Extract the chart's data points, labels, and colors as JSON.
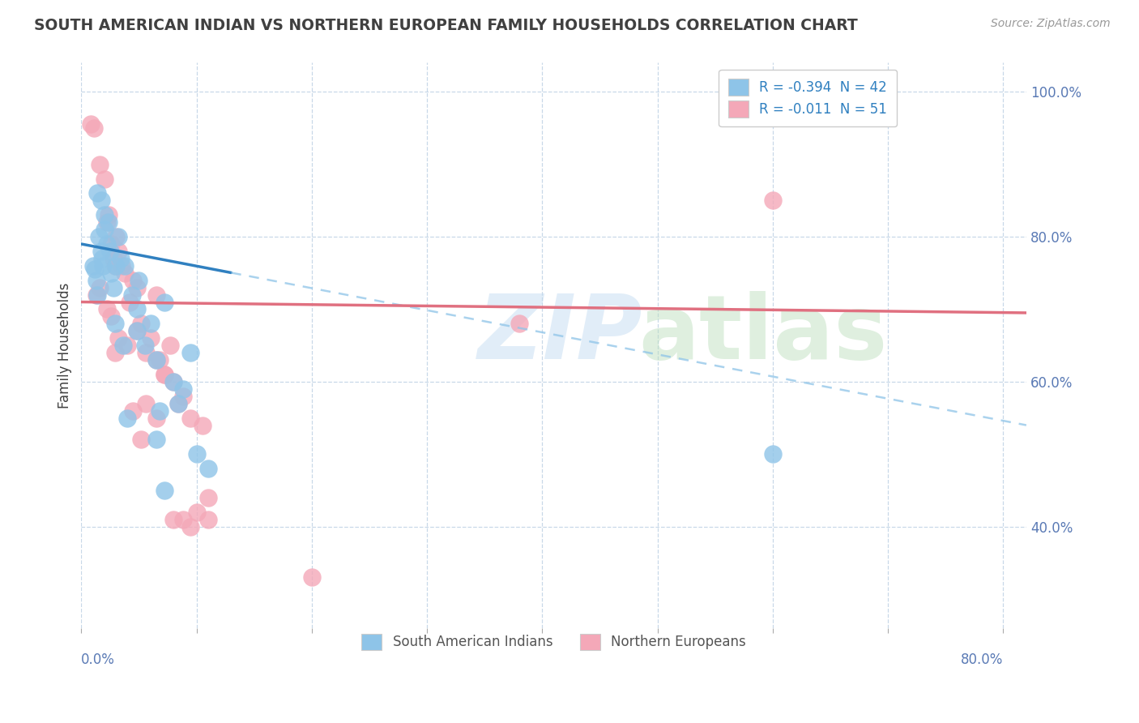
{
  "title": "SOUTH AMERICAN INDIAN VS NORTHERN EUROPEAN FAMILY HOUSEHOLDS CORRELATION CHART",
  "source": "Source: ZipAtlas.com",
  "ylabel": "Family Households",
  "legend_blue_label": "R = -0.394  N = 42",
  "legend_pink_label": "R = -0.011  N = 51",
  "legend_bottom_blue": "South American Indians",
  "legend_bottom_pink": "Northern Europeans",
  "blue_color": "#8ec4e8",
  "pink_color": "#f4a8b8",
  "blue_line_color": "#3080c0",
  "pink_line_color": "#e07080",
  "background_color": "#ffffff",
  "grid_color": "#c8d8e8",
  "title_color": "#404040",
  "axis_label_color": "#5a7ab5",
  "blue_scatter": [
    [
      0.01,
      0.76
    ],
    [
      0.012,
      0.755
    ],
    [
      0.013,
      0.74
    ],
    [
      0.014,
      0.72
    ],
    [
      0.015,
      0.8
    ],
    [
      0.017,
      0.78
    ],
    [
      0.018,
      0.77
    ],
    [
      0.019,
      0.76
    ],
    [
      0.02,
      0.81
    ],
    [
      0.022,
      0.79
    ],
    [
      0.024,
      0.82
    ],
    [
      0.025,
      0.78
    ],
    [
      0.026,
      0.75
    ],
    [
      0.028,
      0.73
    ],
    [
      0.03,
      0.76
    ],
    [
      0.032,
      0.8
    ],
    [
      0.034,
      0.77
    ],
    [
      0.038,
      0.76
    ],
    [
      0.044,
      0.72
    ],
    [
      0.048,
      0.7
    ],
    [
      0.05,
      0.74
    ],
    [
      0.055,
      0.65
    ],
    [
      0.06,
      0.68
    ],
    [
      0.065,
      0.63
    ],
    [
      0.068,
      0.56
    ],
    [
      0.072,
      0.71
    ],
    [
      0.08,
      0.6
    ],
    [
      0.084,
      0.57
    ],
    [
      0.088,
      0.59
    ],
    [
      0.095,
      0.64
    ],
    [
      0.1,
      0.5
    ],
    [
      0.11,
      0.48
    ],
    [
      0.014,
      0.86
    ],
    [
      0.017,
      0.85
    ],
    [
      0.02,
      0.83
    ],
    [
      0.048,
      0.67
    ],
    [
      0.029,
      0.68
    ],
    [
      0.036,
      0.65
    ],
    [
      0.04,
      0.55
    ],
    [
      0.065,
      0.52
    ],
    [
      0.072,
      0.45
    ],
    [
      0.6,
      0.5
    ]
  ],
  "pink_scatter": [
    [
      0.008,
      0.955
    ],
    [
      0.011,
      0.95
    ],
    [
      0.016,
      0.9
    ],
    [
      0.02,
      0.88
    ],
    [
      0.022,
      0.82
    ],
    [
      0.024,
      0.83
    ],
    [
      0.026,
      0.79
    ],
    [
      0.028,
      0.77
    ],
    [
      0.029,
      0.76
    ],
    [
      0.03,
      0.8
    ],
    [
      0.032,
      0.78
    ],
    [
      0.035,
      0.76
    ],
    [
      0.038,
      0.75
    ],
    [
      0.042,
      0.71
    ],
    [
      0.045,
      0.74
    ],
    [
      0.048,
      0.73
    ],
    [
      0.052,
      0.68
    ],
    [
      0.056,
      0.64
    ],
    [
      0.06,
      0.66
    ],
    [
      0.065,
      0.63
    ],
    [
      0.068,
      0.63
    ],
    [
      0.072,
      0.61
    ],
    [
      0.077,
      0.65
    ],
    [
      0.08,
      0.6
    ],
    [
      0.084,
      0.57
    ],
    [
      0.088,
      0.58
    ],
    [
      0.095,
      0.55
    ],
    [
      0.1,
      0.42
    ],
    [
      0.105,
      0.54
    ],
    [
      0.11,
      0.41
    ],
    [
      0.6,
      0.85
    ],
    [
      0.013,
      0.72
    ],
    [
      0.016,
      0.73
    ],
    [
      0.022,
      0.7
    ],
    [
      0.026,
      0.69
    ],
    [
      0.032,
      0.66
    ],
    [
      0.04,
      0.65
    ],
    [
      0.048,
      0.67
    ],
    [
      0.056,
      0.57
    ],
    [
      0.065,
      0.72
    ],
    [
      0.072,
      0.61
    ],
    [
      0.08,
      0.41
    ],
    [
      0.088,
      0.41
    ],
    [
      0.029,
      0.64
    ],
    [
      0.045,
      0.56
    ],
    [
      0.052,
      0.52
    ],
    [
      0.095,
      0.4
    ],
    [
      0.065,
      0.55
    ],
    [
      0.11,
      0.44
    ],
    [
      0.38,
      0.68
    ],
    [
      0.2,
      0.33
    ]
  ],
  "blue_trend_x": [
    0.0,
    0.82
  ],
  "blue_trend_y": [
    0.79,
    0.54
  ],
  "blue_trend_solid_end": 0.13,
  "pink_trend_x": [
    0.0,
    0.82
  ],
  "pink_trend_y": [
    0.71,
    0.695
  ],
  "xlim": [
    0.0,
    0.82
  ],
  "ylim": [
    0.26,
    1.04
  ],
  "ytick_vals": [
    1.0,
    0.8,
    0.6,
    0.4
  ],
  "ytick_labels": [
    "100.0%",
    "80.0%",
    "60.0%",
    "40.0%"
  ],
  "xtick_vals": [
    0.0,
    0.1,
    0.2,
    0.3,
    0.4,
    0.5,
    0.6,
    0.7,
    0.8
  ]
}
